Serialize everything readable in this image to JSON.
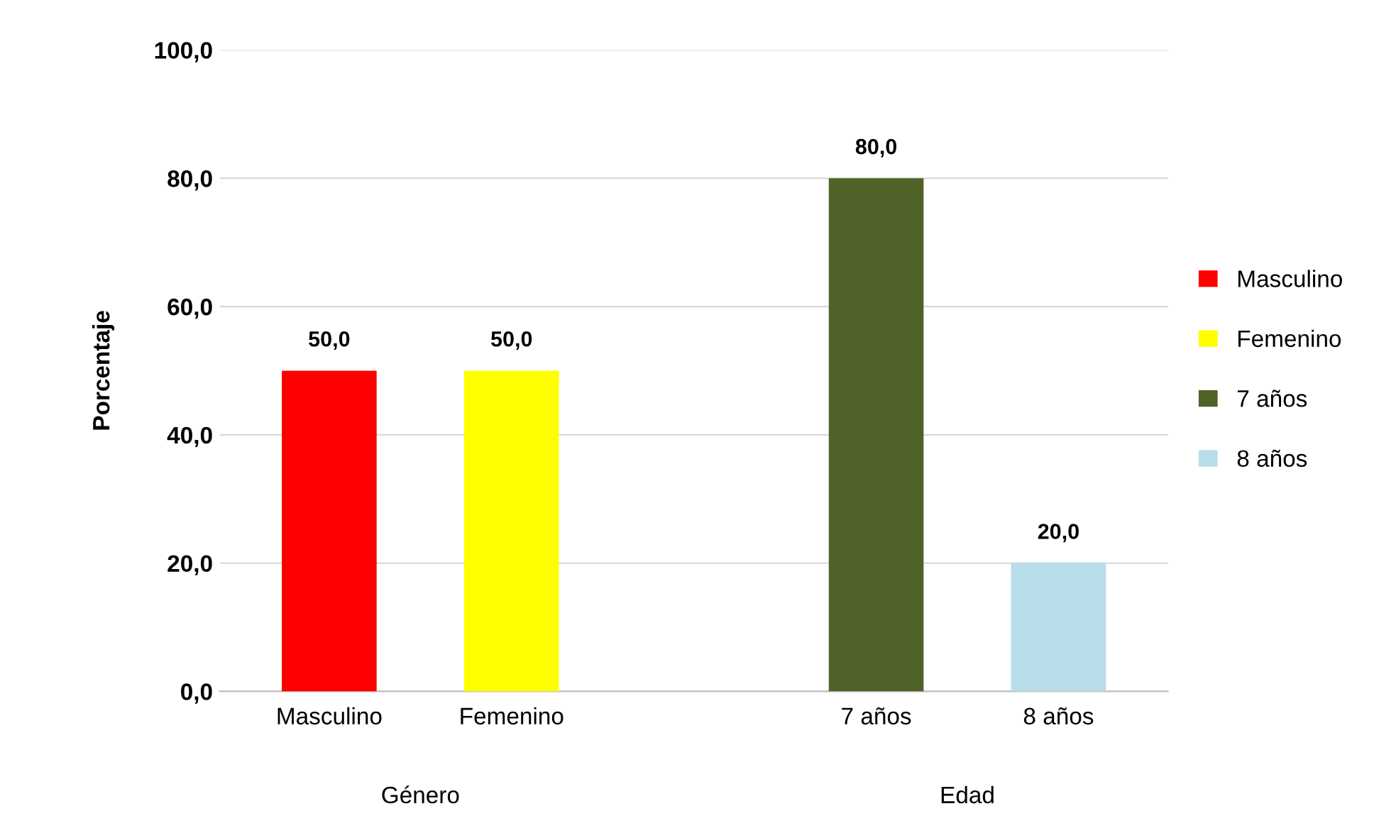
{
  "chart_data": {
    "type": "bar",
    "ylabel": "Porcentaje",
    "categories": [
      "Masculino",
      "Femenino",
      null,
      "7 años",
      "8 años"
    ],
    "series": [
      {
        "name": "Masculino",
        "color": "#ff0000",
        "values": [
          50,
          null,
          null,
          null,
          null
        ],
        "value_labels": [
          "50,0",
          null,
          null,
          null,
          null
        ]
      },
      {
        "name": "Femenino",
        "color": "#ffff00",
        "values": [
          null,
          50,
          null,
          null,
          null
        ],
        "value_labels": [
          null,
          "50,0",
          null,
          null,
          null
        ]
      },
      {
        "name": "7 años",
        "color": "#4f6228",
        "values": [
          null,
          null,
          null,
          80,
          null
        ],
        "value_labels": [
          null,
          null,
          null,
          "80,0",
          null
        ]
      },
      {
        "name": "8 años",
        "color": "#b7dde8",
        "values": [
          null,
          null,
          null,
          null,
          20
        ],
        "value_labels": [
          null,
          null,
          null,
          null,
          "20,0"
        ]
      }
    ],
    "annotations": [
      "Género",
      "Edad"
    ],
    "ylim": [
      0,
      100
    ],
    "yticks": [
      {
        "value": 0,
        "label": "0,0"
      },
      {
        "value": 20,
        "label": "20,0"
      },
      {
        "value": 40,
        "label": "40,0"
      },
      {
        "value": 60,
        "label": "60,0"
      },
      {
        "value": 80,
        "label": "80,0"
      },
      {
        "value": 100,
        "label": "100,0"
      }
    ],
    "grid": "y",
    "legend": "right"
  }
}
